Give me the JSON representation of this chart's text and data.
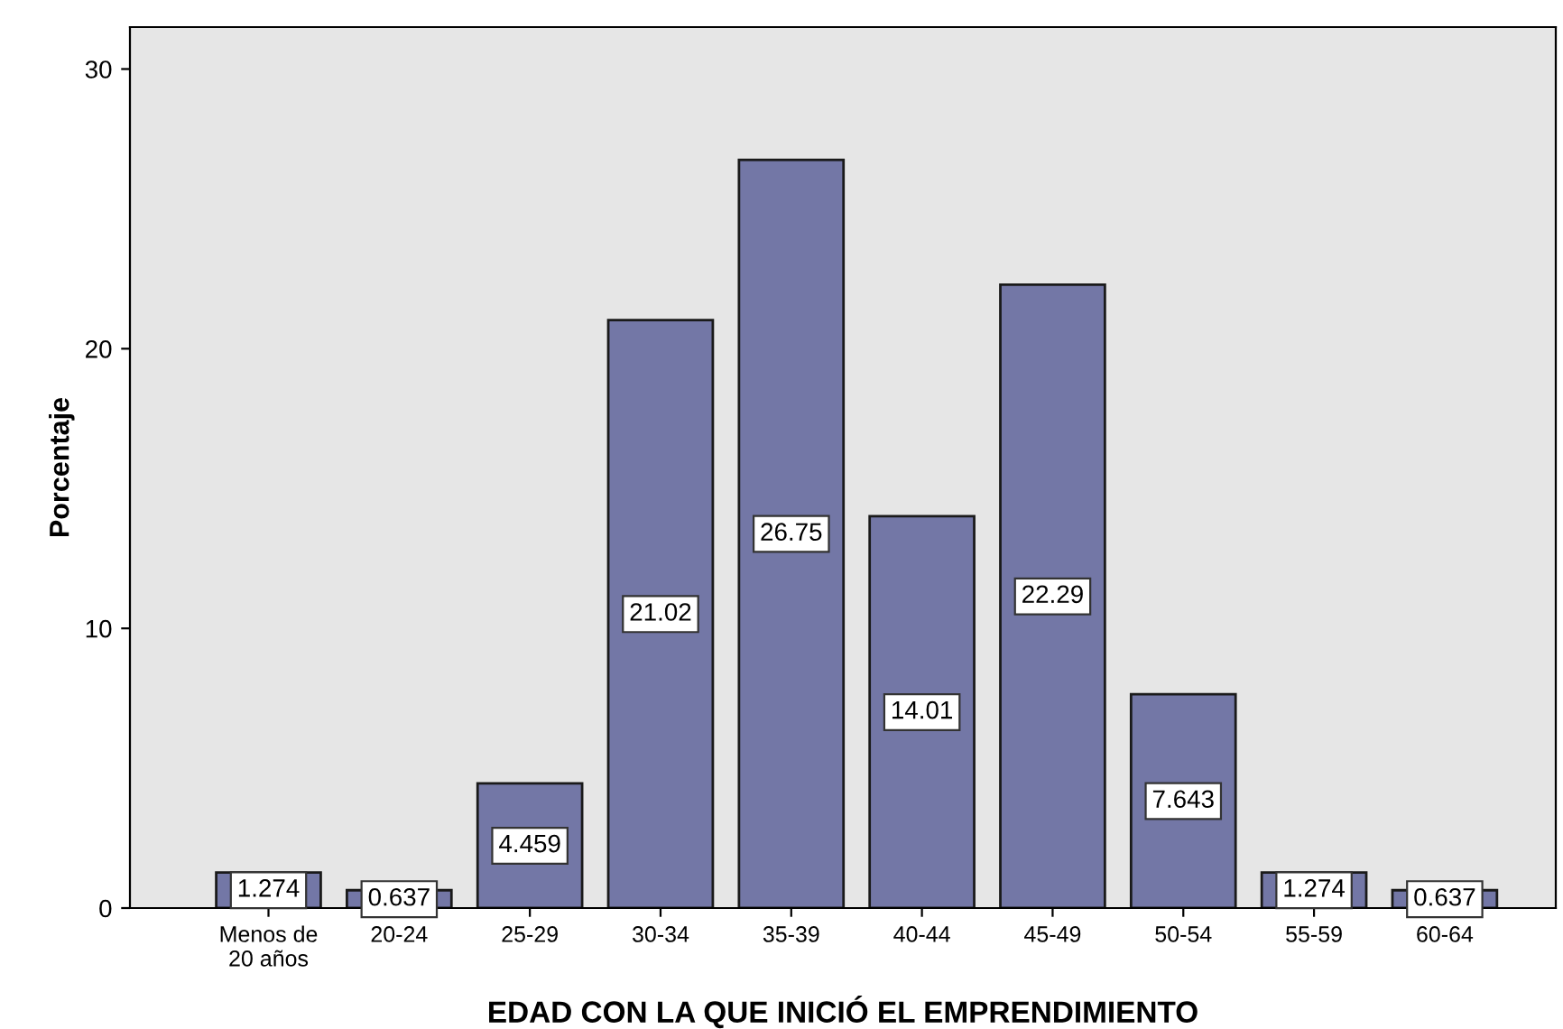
{
  "chart_data": {
    "type": "bar",
    "xlabel": "EDAD CON LA QUE INICIÓ EL EMPRENDIMIENTO",
    "ylabel": "Porcentaje",
    "categories": [
      "Menos de\n20 años",
      "20-24",
      "25-29",
      "30-34",
      "35-39",
      "40-44",
      "45-49",
      "50-54",
      "55-59",
      "60-64"
    ],
    "values": [
      1.274,
      0.637,
      4.459,
      21.02,
      26.75,
      14.01,
      22.29,
      7.643,
      1.274,
      0.637
    ],
    "color": "#7377a6",
    "data_labels": true,
    "grid": false,
    "ylim": [
      0,
      31.5
    ],
    "yticks": [
      0,
      10,
      20,
      30
    ]
  }
}
